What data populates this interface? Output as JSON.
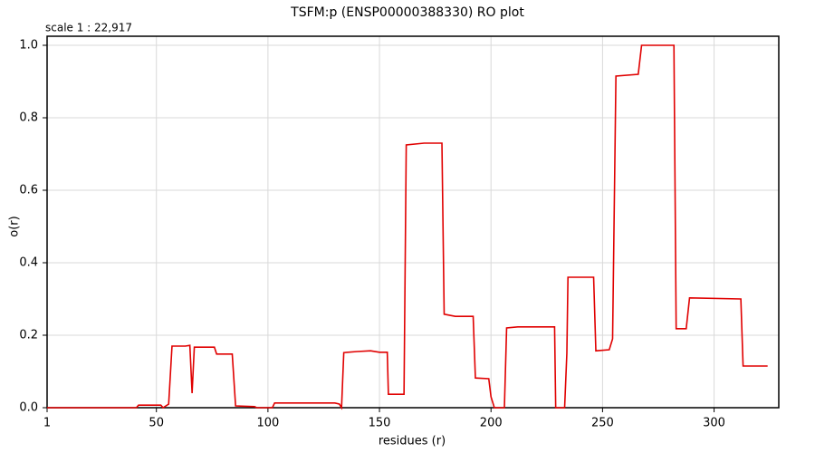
{
  "chart_data": {
    "type": "line",
    "title": "TSFM:p (ENSP00000388330) RO plot",
    "annotation": "scale 1 : 22,917",
    "x_label": "residues (r)",
    "y_label": "o(r)",
    "xlim": [
      1,
      329
    ],
    "ylim": [
      0,
      1.025
    ],
    "xticks": [
      1,
      50,
      100,
      150,
      200,
      250,
      300
    ],
    "yticks": [
      {
        "value": 0,
        "label": "0.0"
      },
      0.2,
      0.4,
      0.6,
      0.8,
      {
        "value": 1,
        "label": "1.0"
      }
    ],
    "grid": true,
    "x": [
      1,
      41,
      42,
      52,
      53,
      55.5,
      57,
      63,
      65,
      66,
      67,
      76,
      77,
      84,
      85.5,
      94,
      95,
      102,
      103,
      130,
      132,
      133,
      134,
      140,
      146,
      150,
      153.5,
      154,
      161,
      162,
      170,
      178,
      179,
      184,
      192,
      193,
      199,
      200,
      201.5,
      206,
      207,
      212,
      228.5,
      229,
      233,
      234,
      234.5,
      246,
      247,
      253,
      254.5,
      256,
      266,
      267.5,
      282,
      283,
      287.5,
      289,
      312,
      313,
      324
    ],
    "series": [
      {
        "name": "o(r)",
        "color": "#e00000",
        "values": [
          0,
          0,
          0.007,
          0.007,
          0,
          0.01,
          0.17,
          0.17,
          0.172,
          0.04,
          0.167,
          0.167,
          0.148,
          0.148,
          0.005,
          0.003,
          0,
          0,
          0.013,
          0.013,
          0.01,
          0,
          0.152,
          0.155,
          0.157,
          0.153,
          0.153,
          0.037,
          0.037,
          0.725,
          0.73,
          0.73,
          0.258,
          0.252,
          0.252,
          0.082,
          0.08,
          0.03,
          0,
          0,
          0.22,
          0.223,
          0.223,
          0,
          0,
          0.15,
          0.36,
          0.36,
          0.157,
          0.16,
          0.19,
          0.915,
          0.92,
          1.0,
          1.0,
          0.218,
          0.218,
          0.303,
          0.3,
          0.115,
          0.115
        ]
      }
    ]
  }
}
